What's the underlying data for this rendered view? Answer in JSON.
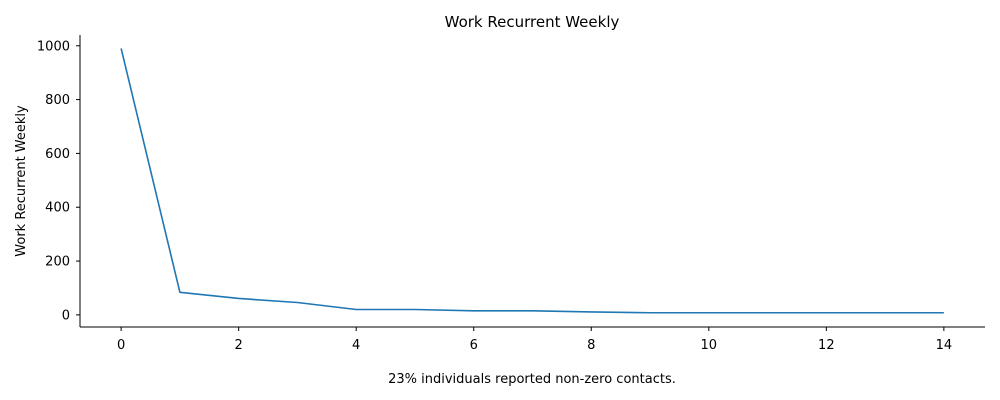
{
  "chart_data": {
    "type": "line",
    "title": "Work Recurrent Weekly",
    "xlabel": "",
    "ylabel": "Work Recurrent Weekly",
    "caption": "23% individuals reported non-zero contacts.",
    "xlim": [
      -0.7,
      14.7
    ],
    "ylim": [
      -45,
      1040
    ],
    "xticks": [
      0,
      2,
      4,
      6,
      8,
      10,
      12,
      14
    ],
    "yticks": [
      0,
      200,
      400,
      600,
      800,
      1000
    ],
    "grid": false,
    "legend": "none",
    "series": [
      {
        "color": "#1f77b4",
        "x": [
          0,
          1,
          2,
          3,
          4,
          5,
          6,
          7,
          8,
          9,
          10,
          11,
          12,
          13,
          14
        ],
        "y": [
          990,
          84,
          61,
          46,
          20,
          20,
          15,
          15,
          11,
          8,
          8,
          8,
          8,
          8,
          8
        ]
      }
    ]
  }
}
